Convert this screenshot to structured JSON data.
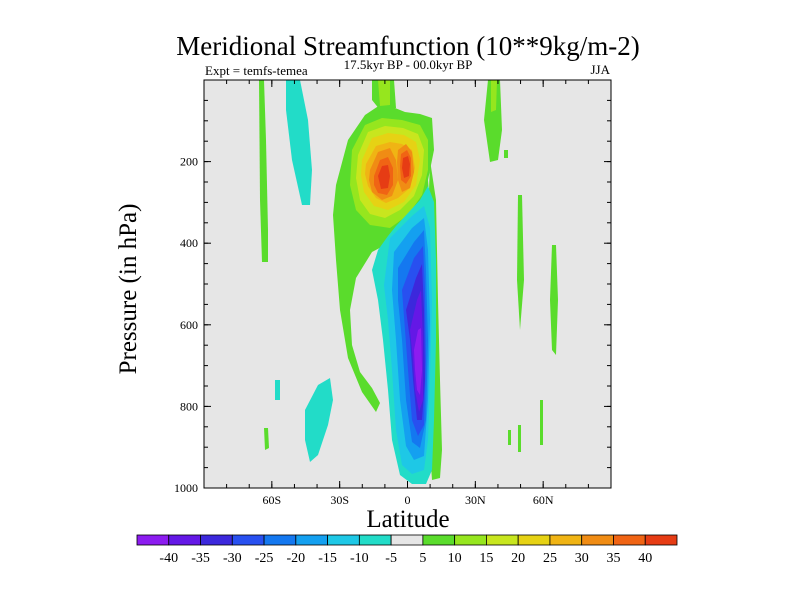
{
  "chart_data": {
    "type": "heatmap",
    "title": "Meridional Streamfunction (10**9kg/m-2)",
    "subtitle_center": "17.5kyr BP - 00.0kyr BP",
    "subtitle_left": "Expt = temfs-temea",
    "subtitle_right": "JJA",
    "xlabel": "Latitude",
    "ylabel": "Pressure (in hPa)",
    "xlim": [
      -90,
      90
    ],
    "ylim": [
      1000,
      0
    ],
    "x_ticks": [
      {
        "value": -60,
        "label": "60S"
      },
      {
        "value": -30,
        "label": "30S"
      },
      {
        "value": 0,
        "label": "0"
      },
      {
        "value": 30,
        "label": "30N"
      },
      {
        "value": 60,
        "label": "60N"
      }
    ],
    "y_ticks": [
      {
        "value": 200,
        "label": "200"
      },
      {
        "value": 400,
        "label": "400"
      },
      {
        "value": 600,
        "label": "600"
      },
      {
        "value": 800,
        "label": "800"
      },
      {
        "value": 1000,
        "label": "1000"
      }
    ],
    "colorbar": {
      "levels": [
        "-40",
        "-35",
        "-30",
        "-25",
        "-20",
        "-15",
        "-10",
        "-5",
        "5",
        "10",
        "15",
        "20",
        "25",
        "30",
        "35",
        "40"
      ],
      "colors": [
        "#8c1cf0",
        "#6418e6",
        "#3c28dc",
        "#2850f0",
        "#1478f0",
        "#14a0f0",
        "#1ec8e6",
        "#22dcc8",
        "#e6e6e6",
        "#5adc2c",
        "#96e61e",
        "#c8e61e",
        "#e6d214",
        "#f0b414",
        "#f08c14",
        "#f06414",
        "#e63c14"
      ]
    },
    "features": [
      {
        "name": "Positive cell at tropopause south of equator",
        "lat": -7,
        "pressure": 230,
        "peak": 40
      },
      {
        "name": "Positive cell at tropopause near equator",
        "lat": 1,
        "pressure": 190,
        "peak": 40
      },
      {
        "name": "Negative cell in mid/lower troposphere just north of equator",
        "lat": 2,
        "pressure": 650,
        "peak": -40
      },
      {
        "name": "Weak positive band at 30S-10S",
        "lat": -18,
        "pressure": 400,
        "peak": 10
      },
      {
        "name": "Weak positive band near 60S",
        "lat": -63,
        "pressure": 300,
        "peak": 5
      },
      {
        "name": "Weak negative band near 55S",
        "lat": -55,
        "pressure": 200,
        "peak": -5
      },
      {
        "name": "Weak negative patch near 40S surface",
        "lat": -40,
        "pressure": 850,
        "peak": -5
      },
      {
        "name": "Weak positive band near 40N",
        "lat": 40,
        "pressure": 100,
        "peak": 10
      },
      {
        "name": "Weak positive band near 65N",
        "lat": 65,
        "pressure": 500,
        "peak": 5
      }
    ]
  }
}
